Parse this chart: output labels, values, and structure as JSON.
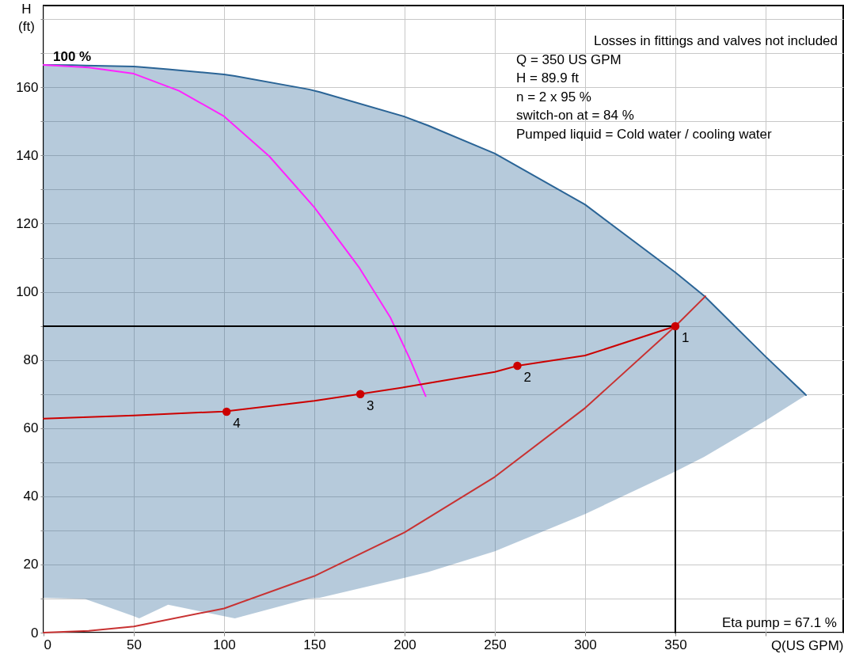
{
  "chart_data": {
    "type": "line",
    "xlabel": "Q(US GPM)",
    "ylabel": "H (ft)",
    "xlim": [
      0,
      443
    ],
    "ylim": [
      0,
      184
    ],
    "xticks": [
      0,
      50,
      100,
      150,
      200,
      250,
      300,
      350,
      {
        "value": 400,
        "label": null
      }
    ],
    "yticks": [
      0,
      {
        "value": 10,
        "label": null
      },
      20,
      {
        "value": 30,
        "label": null
      },
      40,
      {
        "value": 50,
        "label": null
      },
      60,
      {
        "value": 70,
        "label": null
      },
      80,
      {
        "value": 90,
        "label": null
      },
      100,
      {
        "value": 110,
        "label": null
      },
      120,
      {
        "value": 130,
        "label": null
      },
      140,
      {
        "value": 150,
        "label": null
      },
      160,
      {
        "value": 170,
        "label": null
      },
      {
        "value": 180,
        "label": null
      }
    ],
    "grid": true,
    "line_style": "solid",
    "series": [
      {
        "name": "100 %",
        "color": "#2a6496",
        "x": [
          0,
          16,
          23,
          50,
          53,
          69,
          100,
          106,
          147,
          153,
          200,
          213,
          250,
          300,
          350,
          366,
          400,
          422.4
        ],
        "values": [
          166.6,
          166.5,
          166.4,
          166.1,
          166.0,
          165.3,
          163.8,
          163.3,
          159.4,
          158.6,
          151.4,
          148.8,
          140.6,
          125.6,
          105.7,
          98.8,
          81,
          69.7
        ],
        "lower": [
          10.2,
          10.0,
          9.9,
          4.8,
          4.2,
          8.2,
          4.8,
          4.2,
          10.0,
          10.2,
          16.1,
          17.8,
          23.9,
          34.8,
          47.3,
          51.6,
          62.2,
          69.7
        ],
        "upper": [
          166.6,
          166.5,
          166.4,
          166.1,
          166.0,
          165.3,
          163.8,
          163.3,
          159.4,
          158.6,
          151.4,
          148.8,
          140.6,
          125.6,
          105.7,
          98.8,
          81,
          69.7
        ]
      },
      {
        "color": "#ff22ff",
        "x": [
          0,
          25,
          50,
          75,
          100,
          125,
          150,
          175,
          192,
          202.7,
          211.7
        ],
        "values": [
          166.6,
          165.8,
          164.0,
          159,
          151.5,
          139.8,
          124.8,
          107,
          92.6,
          80.6,
          69.4
        ]
      },
      {
        "color": "#c83232",
        "x": [
          0,
          25,
          50,
          100,
          150,
          200,
          250,
          300,
          350,
          366.7
        ],
        "values": [
          0,
          0.5,
          1.8,
          7.1,
          16.6,
          29.4,
          45.7,
          65.9,
          89.9,
          98.7
        ]
      },
      {
        "color": "#cc0000",
        "x": [
          0,
          50,
          100,
          150,
          175,
          200,
          250,
          262.5,
          300,
          350
        ],
        "values": [
          62.8,
          63.7,
          64.9,
          68.0,
          70.0,
          72.0,
          76.5,
          78.3,
          81.3,
          89.9
        ]
      },
      {
        "color": "#000000",
        "x": [
          0,
          350,
          350
        ],
        "values": [
          89.9,
          89.9,
          0
        ]
      },
      {
        "type": "scatter",
        "color": "#cc0000",
        "marker": "circle",
        "x": [
          350,
          262.5,
          175.5,
          101.4
        ],
        "values": [
          89.9,
          78.3,
          70.0,
          64.8
        ]
      }
    ],
    "annotations": [
      {
        "text": "1",
        "x": 350,
        "y": 89.9
      },
      {
        "text": "2",
        "x": 262.5,
        "y": 78.3
      },
      {
        "text": "3",
        "x": 175.5,
        "y": 70.0
      },
      {
        "text": "4",
        "x": 101.4,
        "y": 64.8
      },
      "Losses in fittings and valves not included",
      "Q = 350 US GPM",
      "H = 89.9 ft",
      "n = 2 x 95 %",
      "switch-on at = 84  %",
      "Pumped liquid = Cold water / cooling water",
      "Eta pump = 67.1 %"
    ]
  }
}
